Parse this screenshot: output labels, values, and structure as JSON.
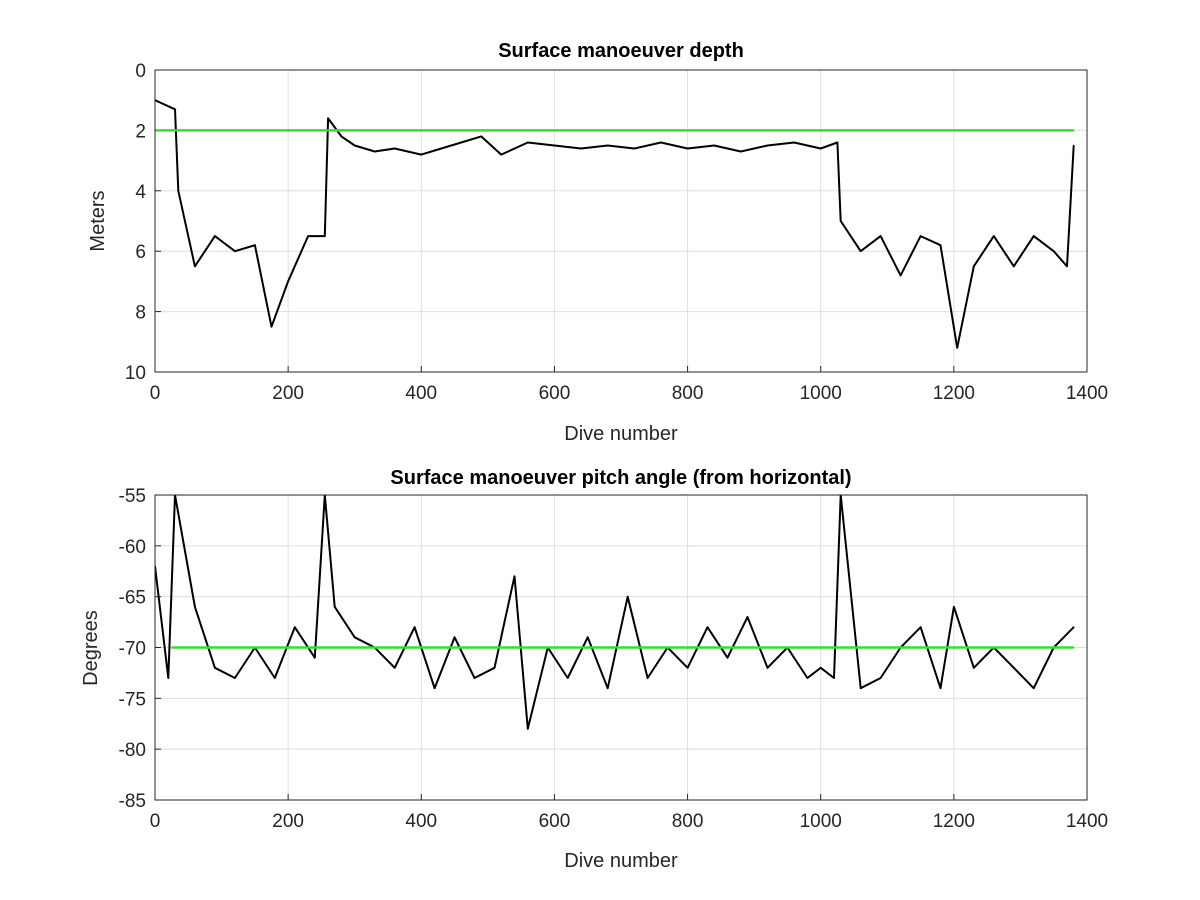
{
  "chart_data": [
    {
      "type": "line",
      "title": "Surface manoeuver depth",
      "xlabel": "Dive number",
      "ylabel": "Meters",
      "xlim": [
        0,
        1400
      ],
      "ylim": [
        0,
        10
      ],
      "y_reversed": true,
      "xticks": [
        "0",
        "200",
        "400",
        "600",
        "800",
        "1000",
        "1200",
        "1400"
      ],
      "yticks": [
        "0",
        "2",
        "4",
        "6",
        "8",
        "10"
      ],
      "grid": true,
      "series": [
        {
          "color": "#000000",
          "x": [
            0,
            30,
            35,
            60,
            90,
            120,
            150,
            175,
            200,
            230,
            255,
            260,
            280,
            300,
            330,
            360,
            400,
            430,
            460,
            490,
            520,
            560,
            600,
            640,
            680,
            720,
            760,
            800,
            840,
            880,
            920,
            960,
            1000,
            1025,
            1030,
            1060,
            1090,
            1120,
            1150,
            1180,
            1205,
            1230,
            1260,
            1290,
            1320,
            1350,
            1370,
            1380
          ],
          "y": [
            1.0,
            1.3,
            4.0,
            6.5,
            5.5,
            6.0,
            5.8,
            8.5,
            7.0,
            5.5,
            5.5,
            1.6,
            2.2,
            2.5,
            2.7,
            2.6,
            2.8,
            2.6,
            2.4,
            2.2,
            2.8,
            2.4,
            2.5,
            2.6,
            2.5,
            2.6,
            2.4,
            2.6,
            2.5,
            2.7,
            2.5,
            2.4,
            2.6,
            2.4,
            5.0,
            6.0,
            5.5,
            6.8,
            5.5,
            5.8,
            9.2,
            6.5,
            5.5,
            6.5,
            5.5,
            6.0,
            6.5,
            2.5
          ]
        },
        {
          "color": "#33dd33",
          "x": [
            0,
            1380
          ],
          "y": [
            2,
            2
          ]
        }
      ]
    },
    {
      "type": "line",
      "title": "Surface manoeuver pitch angle (from horizontal)",
      "xlabel": "Dive number",
      "ylabel": "Degrees",
      "xlim": [
        0,
        1400
      ],
      "ylim": [
        -85,
        -55
      ],
      "xticks": [
        "0",
        "200",
        "400",
        "600",
        "800",
        "1000",
        "1200",
        "1400"
      ],
      "yticks": [
        "-55",
        "-60",
        "-65",
        "-70",
        "-75",
        "-80",
        "-85"
      ],
      "grid": true,
      "series": [
        {
          "color": "#000000",
          "x": [
            0,
            20,
            30,
            60,
            90,
            120,
            150,
            180,
            210,
            240,
            255,
            270,
            300,
            330,
            360,
            390,
            420,
            450,
            480,
            510,
            540,
            560,
            590,
            620,
            650,
            680,
            710,
            740,
            770,
            800,
            830,
            860,
            890,
            920,
            950,
            980,
            1000,
            1020,
            1030,
            1060,
            1090,
            1120,
            1150,
            1180,
            1200,
            1230,
            1260,
            1290,
            1320,
            1350,
            1380
          ],
          "y": [
            -62,
            -73,
            -55,
            -66,
            -72,
            -73,
            -70,
            -73,
            -68,
            -71,
            -55,
            -66,
            -69,
            -70,
            -72,
            -68,
            -74,
            -69,
            -73,
            -72,
            -63,
            -78,
            -70,
            -73,
            -69,
            -74,
            -65,
            -73,
            -70,
            -72,
            -68,
            -71,
            -67,
            -72,
            -70,
            -73,
            -72,
            -73,
            -55,
            -74,
            -73,
            -70,
            -68,
            -74,
            -66,
            -72,
            -70,
            -72,
            -74,
            -70,
            -68
          ]
        },
        {
          "color": "#33dd33",
          "x": [
            25,
            1380
          ],
          "y": [
            -70,
            -70
          ]
        }
      ]
    }
  ]
}
